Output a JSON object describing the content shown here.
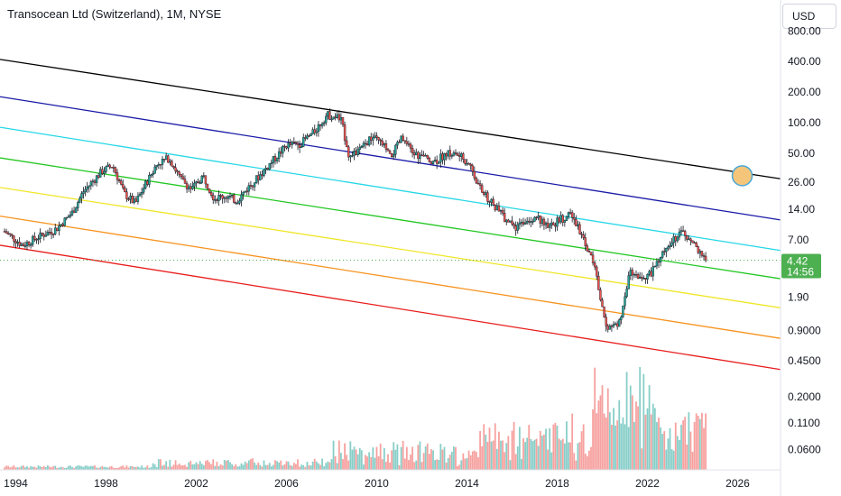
{
  "header": {
    "title": "Transocean Ltd (Switzerland), 1M, NYSE"
  },
  "scale": {
    "currency": "USD"
  },
  "price_badge": {
    "price": "4.42",
    "countdown": "14:56",
    "color": "#4caf50"
  },
  "chart_data": {
    "type": "candlestick",
    "y_scale": "log",
    "y_tick_labels": [
      "800.00",
      "400.00",
      "200.00",
      "100.00",
      "50.00",
      "26.00",
      "14.00",
      "7.00",
      "1.90",
      "0.9000",
      "0.4500",
      "0.2000",
      "0.1100",
      "0.0600"
    ],
    "x_tick_labels": [
      "1994",
      "1998",
      "2002",
      "2006",
      "2010",
      "2014",
      "2018",
      "2022",
      "2026"
    ],
    "x_range": [
      1993.3,
      2027.9
    ],
    "last_price": 4.42,
    "price_path": [
      [
        1993.5,
        8.5
      ],
      [
        1994.3,
        6.2
      ],
      [
        1995.0,
        7.5
      ],
      [
        1995.8,
        9.0
      ],
      [
        1996.5,
        13
      ],
      [
        1997.0,
        21
      ],
      [
        1997.8,
        33
      ],
      [
        1998.3,
        38
      ],
      [
        1998.8,
        20
      ],
      [
        1999.3,
        16
      ],
      [
        1999.8,
        26
      ],
      [
        2000.3,
        40
      ],
      [
        2000.8,
        45
      ],
      [
        2001.3,
        28
      ],
      [
        2001.8,
        22
      ],
      [
        2002.3,
        30
      ],
      [
        2002.8,
        18
      ],
      [
        2003.3,
        19
      ],
      [
        2003.8,
        17
      ],
      [
        2004.3,
        23
      ],
      [
        2004.8,
        30
      ],
      [
        2005.5,
        45
      ],
      [
        2006.0,
        60
      ],
      [
        2006.6,
        62
      ],
      [
        2007.2,
        80
      ],
      [
        2007.8,
        120
      ],
      [
        2008.4,
        110
      ],
      [
        2008.8,
        45
      ],
      [
        2009.3,
        55
      ],
      [
        2009.8,
        72
      ],
      [
        2010.3,
        60
      ],
      [
        2010.6,
        45
      ],
      [
        2011.1,
        70
      ],
      [
        2011.6,
        50
      ],
      [
        2012.1,
        45
      ],
      [
        2012.6,
        42
      ],
      [
        2013.1,
        50
      ],
      [
        2013.6,
        48
      ],
      [
        2014.1,
        40
      ],
      [
        2014.6,
        22
      ],
      [
        2015.1,
        16
      ],
      [
        2015.6,
        12
      ],
      [
        2016.1,
        9
      ],
      [
        2016.6,
        11
      ],
      [
        2017.1,
        12
      ],
      [
        2017.6,
        9
      ],
      [
        2018.1,
        11
      ],
      [
        2018.6,
        12.5
      ],
      [
        2019.1,
        8
      ],
      [
        2019.6,
        4.2
      ],
      [
        2020.2,
        1.0
      ],
      [
        2020.8,
        1.1
      ],
      [
        2021.2,
        3.5
      ],
      [
        2021.6,
        2.8
      ],
      [
        2022.1,
        3.2
      ],
      [
        2022.6,
        4.8
      ],
      [
        2023.1,
        6.8
      ],
      [
        2023.6,
        8.5
      ],
      [
        2024.1,
        6.0
      ],
      [
        2024.6,
        4.42
      ]
    ],
    "channel_lines": [
      {
        "color": "#000000",
        "from": [
          1993.3,
          420
        ],
        "to": [
          2027.9,
          28
        ]
      },
      {
        "color": "#1a1aa8",
        "from": [
          1993.3,
          180
        ],
        "to": [
          2027.9,
          11
        ]
      },
      {
        "color": "#26d7e6",
        "from": [
          1993.3,
          90
        ],
        "to": [
          2027.9,
          5.5
        ]
      },
      {
        "color": "#22c722",
        "from": [
          1993.3,
          45
        ],
        "to": [
          2027.9,
          2.9
        ]
      },
      {
        "color": "#f0e629",
        "from": [
          1993.3,
          23
        ],
        "to": [
          2027.9,
          1.5
        ]
      },
      {
        "color": "#f7931e",
        "from": [
          1993.3,
          12
        ],
        "to": [
          2027.9,
          0.75
        ]
      },
      {
        "color": "#e81c1c",
        "from": [
          1993.3,
          6.2
        ],
        "to": [
          2027.9,
          0.37
        ]
      }
    ],
    "highlight_circle": {
      "x": 2026.2,
      "price": 30,
      "fill": "#f5c57a",
      "stroke": "#4aa8d8"
    },
    "volume_up_color": "#26a69a",
    "volume_down_color": "#ef5350",
    "candle_up_color": "#26a69a",
    "candle_down_color": "#ef5350",
    "grid": false
  }
}
